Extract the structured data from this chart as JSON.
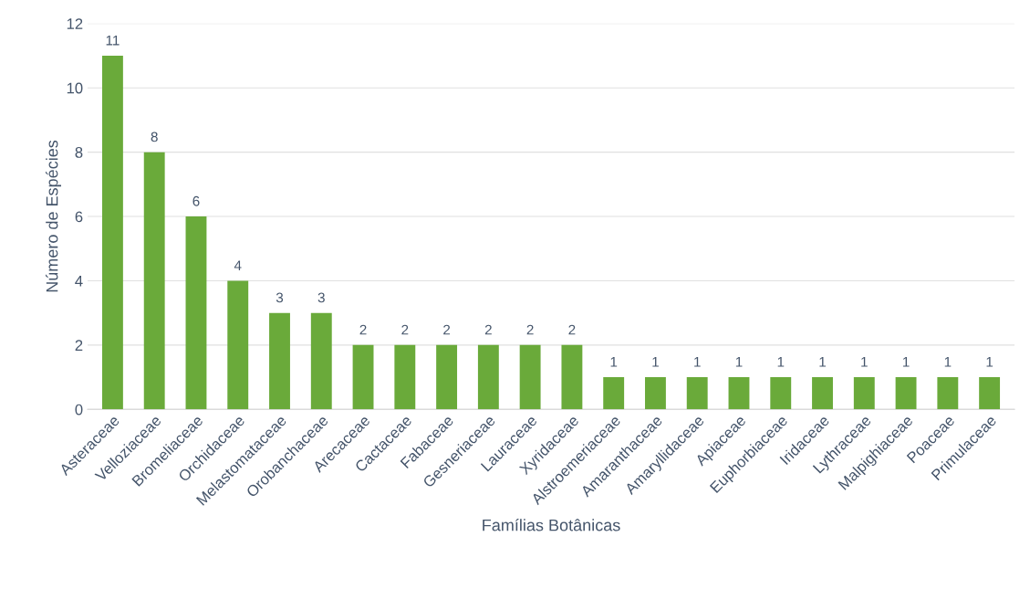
{
  "chart_data": {
    "type": "bar",
    "xlabel": "Famílias Botânicas",
    "ylabel": "Número de Espécies",
    "categories": [
      "Asteraceae",
      "Velloziaceae",
      "Bromeliaceae",
      "Orchidaceae",
      "Melastomataceae",
      "Orobanchaceae",
      "Arecaceae",
      "Cactaceae",
      "Fabaceae",
      "Gesneriaceae",
      "Lauraceae",
      "Xyridaceae",
      "Alstroemeriaceae",
      "Amaranthaceae",
      "Amaryllidaceae",
      "Apiaceae",
      "Euphorbiaceae",
      "Iridaceae",
      "Lythraceae",
      "Malpighiaceae",
      "Poaceae",
      "Primulaceae"
    ],
    "values": [
      11,
      8,
      6,
      4,
      3,
      3,
      2,
      2,
      2,
      2,
      2,
      2,
      1,
      1,
      1,
      1,
      1,
      1,
      1,
      1,
      1,
      1
    ],
    "color": "#6aaa3a",
    "ylim": [
      0,
      12
    ],
    "yticks": [
      0,
      2,
      4,
      6,
      8,
      10,
      12
    ],
    "grid": "y",
    "data_labels": true
  }
}
